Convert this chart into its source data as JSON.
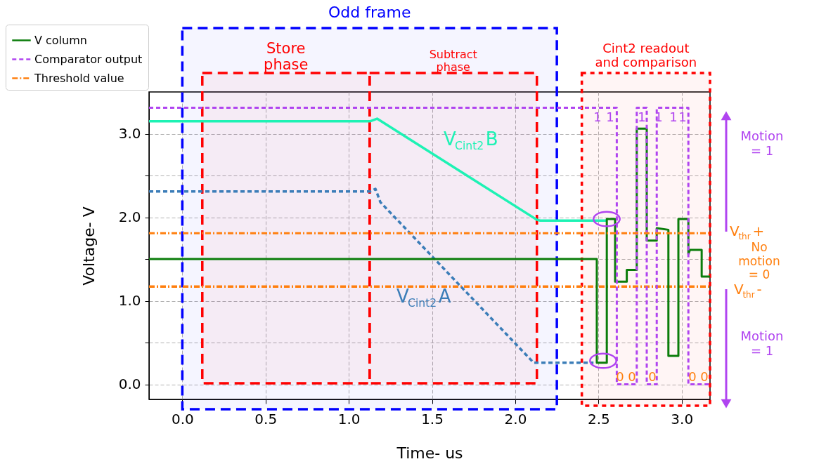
{
  "chart_data": {
    "type": "line",
    "xlabel": "Time- us",
    "ylabel": "Voltage- V",
    "xlim": [
      -0.2,
      3.17
    ],
    "ylim": [
      -0.18,
      3.5
    ],
    "xticks": [
      {
        "value": 0,
        "label": "0.0"
      },
      {
        "value": 0.5,
        "label": "0.5"
      },
      {
        "value": 1,
        "label": "1.0"
      },
      {
        "value": 1.5,
        "label": "1.5"
      },
      {
        "value": 2,
        "label": "2.0"
      },
      {
        "value": 2.5,
        "label": "2.5"
      },
      {
        "value": 3,
        "label": "3.0"
      }
    ],
    "yticks": [
      {
        "value": 0,
        "label": "0.0"
      },
      {
        "value": 0.5,
        "label": null
      },
      {
        "value": 1,
        "label": "1.0"
      },
      {
        "value": 1.5,
        "label": null
      },
      {
        "value": 2,
        "label": "2.0"
      },
      {
        "value": 2.5,
        "label": null
      },
      {
        "value": 3,
        "label": "3.0"
      }
    ],
    "grid": true,
    "legend": "top left",
    "marker": "none",
    "series": [
      {
        "name": "V column",
        "color": "#0b7d0b",
        "line_style": "solid",
        "x": [
          -0.2,
          2.49,
          2.49,
          2.55,
          2.55,
          2.6,
          2.6,
          2.67,
          2.67,
          2.73,
          2.73,
          2.79,
          2.79,
          2.85,
          2.85,
          2.92,
          2.92,
          2.98,
          2.98,
          3.04,
          3.04,
          3.05,
          3.12,
          3.12,
          3.17
        ],
        "values": [
          1.5,
          1.5,
          0.26,
          0.26,
          1.98,
          1.98,
          1.23,
          1.23,
          1.37,
          1.37,
          3.06,
          3.06,
          1.72,
          1.72,
          1.87,
          1.85,
          0.34,
          0.34,
          1.98,
          1.98,
          1.56,
          1.61,
          1.61,
          1.29,
          1.29
        ]
      },
      {
        "name": "Comparator output",
        "color": "#b044f0",
        "line_style": "dashed",
        "x": [
          -0.2,
          2.61,
          2.61,
          2.73,
          2.73,
          2.79,
          2.79,
          2.85,
          2.85,
          3.04,
          3.04,
          3.17
        ],
        "values": [
          3.31,
          3.31,
          0.0,
          0.0,
          3.31,
          3.31,
          0.0,
          0.0,
          3.31,
          3.31,
          0.0,
          0.0
        ]
      },
      {
        "name": "Threshold value",
        "color": "#ff7f0e",
        "line_style": "dashdot",
        "x": [
          -0.2,
          3.17
        ],
        "values": [
          1.81,
          1.81
        ]
      },
      {
        "color": "#ff7f0e",
        "line_style": "dashdot",
        "x": [
          -0.2,
          3.17
        ],
        "values": [
          1.17,
          1.17
        ]
      },
      {
        "color": "#1df2b4",
        "line_style": "solid",
        "x": [
          -0.2,
          1.13,
          1.17,
          2.13,
          2.15,
          2.55
        ],
        "values": [
          3.15,
          3.15,
          3.18,
          1.97,
          1.96,
          1.96
        ]
      },
      {
        "color": "#3b7db8",
        "line_style": "dashed",
        "x": [
          -0.2,
          1.13,
          1.16,
          1.19,
          2.11,
          2.47
        ],
        "values": [
          2.31,
          2.31,
          2.34,
          2.18,
          0.26,
          0.26
        ]
      }
    ],
    "bands": [
      {
        "axis": "x",
        "from": 0.0,
        "to": 2.25,
        "label": "Odd frame",
        "color": "#0000ff"
      },
      {
        "axis": "x",
        "from": 0.12,
        "to": 1.125,
        "label": "Store\nphase",
        "color": "#ff0000"
      },
      {
        "axis": "x",
        "from": 1.125,
        "to": 2.13,
        "label": "Subtract\nphase",
        "color": "#ff0000"
      },
      {
        "axis": "x",
        "from": 2.4,
        "to": 3.17,
        "label": "Cint2 readout\nand comparison",
        "color": "#ff0000"
      }
    ],
    "annotations": [
      "V$_{Cint2}$B",
      "V$_{Cint2}$A",
      "1",
      "1",
      "1",
      "1",
      "1",
      "1",
      "0",
      "0",
      "0",
      "0",
      "0",
      "Motion\n= 1",
      "No\nmotion\n= 0",
      "Motion\n= 1",
      "V$_{thr}$+",
      "V$_{thr}$-"
    ]
  }
}
